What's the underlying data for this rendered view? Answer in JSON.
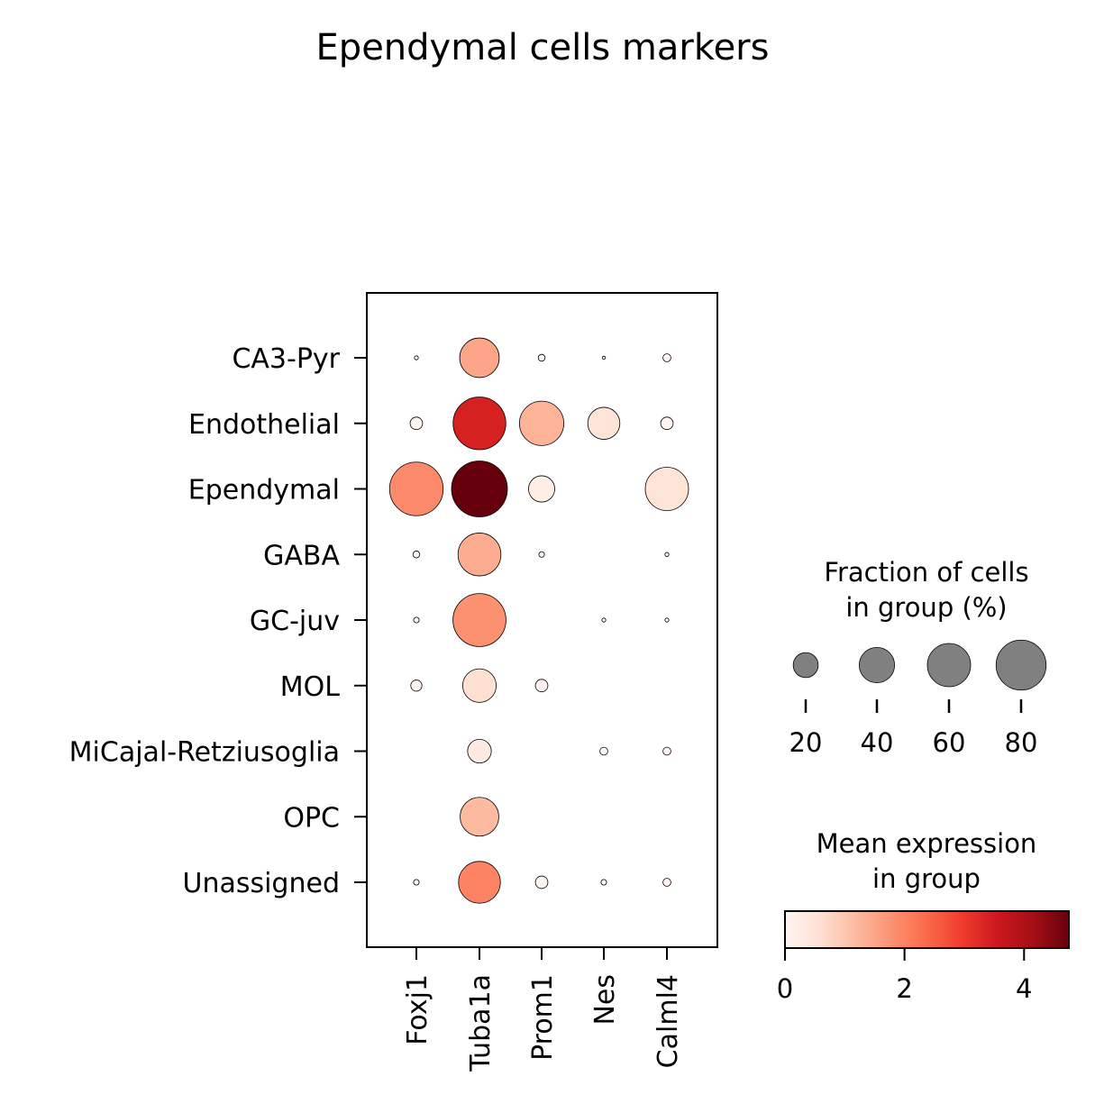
{
  "chart_data": {
    "type": "dotplot",
    "title": "Ependymal cells markers",
    "genes": [
      "Foxj1",
      "Tuba1a",
      "Prom1",
      "Nes",
      "Calml4"
    ],
    "groups": [
      "CA3-Pyr",
      "Endothelial",
      "Ependymal",
      "GABA",
      "GC-juv",
      "MOL",
      "MiCajal-Retziusoglia",
      "OPC",
      "Unassigned"
    ],
    "fraction_pct": [
      [
        0.5,
        50,
        1.5,
        0.3,
        2
      ],
      [
        5,
        89,
        63,
        33,
        5
      ],
      [
        92,
        100,
        22,
        0,
        60
      ],
      [
        1.5,
        59,
        1,
        0,
        0.5
      ],
      [
        1,
        90,
        0,
        0.5,
        0.5
      ],
      [
        4,
        36,
        5,
        0,
        0
      ],
      [
        0,
        18,
        0,
        2,
        2
      ],
      [
        0,
        48,
        0,
        0,
        0
      ],
      [
        1,
        56,
        5,
        1,
        2
      ]
    ],
    "mean_expression": [
      [
        0,
        1.5,
        0,
        0,
        0
      ],
      [
        0,
        3.4,
        1.3,
        0.5,
        0
      ],
      [
        1.9,
        4.8,
        0.2,
        0,
        0.5
      ],
      [
        0,
        1.4,
        0,
        0,
        0
      ],
      [
        0,
        1.8,
        0,
        0,
        0
      ],
      [
        0,
        0.6,
        0,
        0,
        0
      ],
      [
        0,
        0.3,
        0,
        0,
        0
      ],
      [
        0,
        1.2,
        0,
        0,
        0
      ],
      [
        0,
        2.0,
        0,
        0,
        0
      ]
    ],
    "size_legend": {
      "title_line1": "Fraction of cells",
      "title_line2": "in group (%)",
      "values": [
        20,
        40,
        60,
        80
      ]
    },
    "color_legend": {
      "title_line1": "Mean expression",
      "title_line2": "in group",
      "ticks": [
        0,
        2,
        4
      ],
      "range": [
        0,
        4.75
      ],
      "colormap": "Reds",
      "colors": [
        "#fff5f0",
        "#fee0d2",
        "#fcbba1",
        "#fc9272",
        "#fb6a4a",
        "#ef3b2c",
        "#cb181d",
        "#a50f15",
        "#67000d"
      ]
    }
  }
}
